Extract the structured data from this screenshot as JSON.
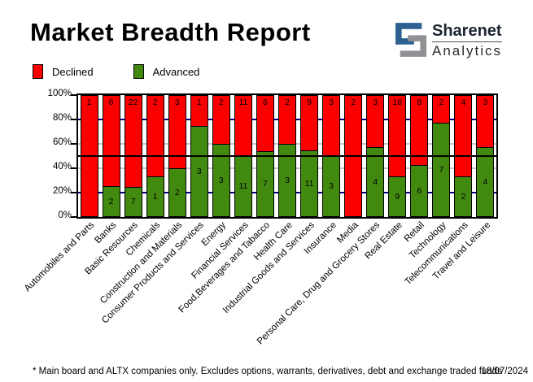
{
  "header": {
    "title": "Market Breadth Report"
  },
  "logo": {
    "brand": "Sharenet",
    "sub": "Analytics",
    "mark_blue": "#2d6191",
    "mark_gray": "#8f9194"
  },
  "legend": {
    "declined_label": "Declined",
    "advanced_label": "Advanced"
  },
  "colors": {
    "declined": "#fb0000",
    "advanced": "#428a0f",
    "grid_major": "#00007f",
    "grid_minor": "#c6c6c6",
    "reference_line": "#000000"
  },
  "chart_data": {
    "type": "bar",
    "stacked": true,
    "normalized": "100% stacked (share of companies)",
    "title": "Market Breadth Report",
    "xlabel": "",
    "ylabel": "",
    "ylim": [
      0,
      100
    ],
    "grid": true,
    "legend_position": "top-left",
    "categories": [
      "Automobiles and Parts",
      "Banks",
      "Basic Resources",
      "Chemicals",
      "Construction and Materials",
      "Consumer Products and Services",
      "Energy",
      "Financial Services",
      "Food,Beverages and Tabacco",
      "Health Care",
      "Industrial Goods and Services",
      "Insurance",
      "Media",
      "Personal Care, Drug and Grocery Stores",
      "Real Estate",
      "Retail",
      "Technology",
      "Telecommunications",
      "Travel and Leisure"
    ],
    "series": [
      {
        "name": "Declined",
        "color": "#fb0000",
        "values": [
          1,
          6,
          22,
          2,
          3,
          1,
          2,
          11,
          6,
          2,
          9,
          3,
          2,
          3,
          18,
          8,
          2,
          4,
          3
        ]
      },
      {
        "name": "Advanced",
        "color": "#428a0f",
        "values": [
          0,
          2,
          7,
          1,
          2,
          3,
          3,
          11,
          7,
          3,
          11,
          3,
          0,
          4,
          9,
          6,
          7,
          2,
          4
        ]
      }
    ],
    "y_ticks": [
      {
        "label": "100%",
        "pct": 100
      },
      {
        "label": "80%",
        "pct": 80
      },
      {
        "label": "60%",
        "pct": 60
      },
      {
        "label": "40%",
        "pct": 40
      },
      {
        "label": "20%",
        "pct": 20
      },
      {
        "label": "0%",
        "pct": 0
      }
    ],
    "gridlines": [
      {
        "pct": 80,
        "color": "#00007f"
      },
      {
        "pct": 60,
        "color": "#c6c6c6"
      },
      {
        "pct": 40,
        "color": "#c6c6c6"
      },
      {
        "pct": 20,
        "color": "#00007f"
      }
    ],
    "reference_line_pct": 50
  },
  "footer": {
    "disclaimer": "* Main board and ALTX companies only. Excludes options, warrants, derivatives, debt and exchange traded funds",
    "date": "18/07/2024"
  }
}
